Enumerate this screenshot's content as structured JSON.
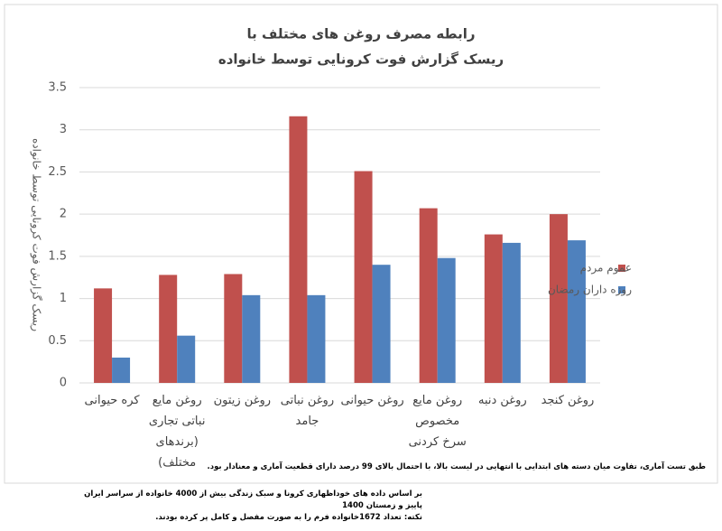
{
  "chart_data": {
    "type": "bar",
    "title": [
      "رابطه مصرف روغن های مختلف با",
      "ریسک گزارش فوت کرونایی توسط خانواده"
    ],
    "y_label": "ریسک گزارش فوت کرونایی توسط خانواده",
    "categories": [
      "کره حیوانی",
      "روغن مایع نباتی تجاری (برندهای مختلف)",
      "روغن زیتون",
      "روغن نباتی جامد",
      "روغن حیوانی",
      "روغن مایع مخصوص سرخ کردنی",
      "روغن دنبه",
      "روغن کنجد"
    ],
    "series": [
      {
        "name": "عموم مردم",
        "color": "#c0504d",
        "values": [
          1.12,
          1.28,
          1.29,
          3.16,
          2.51,
          2.07,
          1.76,
          2.0
        ]
      },
      {
        "name": "روزه داران رمضان",
        "color": "#4f81bd",
        "values": [
          0.3,
          0.56,
          1.04,
          1.04,
          1.4,
          1.48,
          1.66,
          1.69
        ]
      }
    ],
    "ylim": [
      0,
      3.5
    ],
    "yticks": [
      0,
      0.5,
      1,
      1.5,
      2,
      2.5,
      3,
      3.5
    ],
    "grid": true,
    "legend": "right",
    "notes": [
      "طبق تست آماری، تفاوت میان دسته های ابتدایی با انتهایی در لیست بالا، با احتمال بالای 99 درصد دارای قطعیت آماری و معنادار بود.",
      "بر اساس داده های خوداظهاری کرونا و سبک زندگی بیش از  4000 خانواده از سراسر ایران",
      "پاییز و زمستان 1400",
      "نکته:  تعداد  1672خانواده فرم را به صورت مفصل و کامل پر کرده بودند."
    ]
  }
}
